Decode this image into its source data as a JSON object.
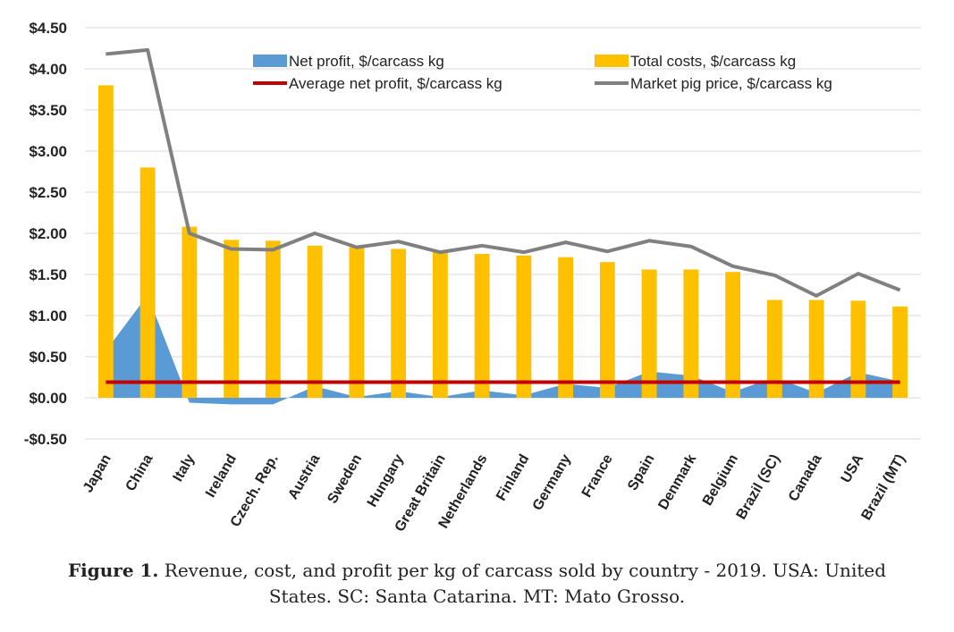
{
  "caption": {
    "label": "Figure 1.",
    "text": "Revenue, cost, and profit per kg of carcass sold by country - 2019. USA: United",
    "text2": "States. SC: Santa Catarina. MT: Mato Grosso."
  },
  "colors": {
    "net_profit": "#5b9bd5",
    "total_costs": "#ffc000",
    "average_net_profit": "#c00000",
    "market_price": "#808080"
  },
  "chart_data": {
    "type": "bar",
    "categories": [
      "Japan",
      "China",
      "Italy",
      "Ireland",
      "Czech. Rep.",
      "Austria",
      "Sweden",
      "Hungary",
      "Great Britain",
      "Netherlands",
      "Finland",
      "Germany",
      "France",
      "Spain",
      "Denmark",
      "Belgium",
      "Brazil (SC)",
      "Canada",
      "USA",
      "Brazil (MT)"
    ],
    "ylim": [
      -0.5,
      4.5
    ],
    "yticks": [
      -0.5,
      0,
      0.5,
      1.0,
      1.5,
      2.0,
      2.5,
      3.0,
      3.5,
      4.0,
      4.5
    ],
    "ytick_labels": [
      "-$0.50",
      "$0.00",
      "$0.50",
      "$1.00",
      "$1.50",
      "$2.00",
      "$2.50",
      "$3.00",
      "$3.50",
      "$4.00",
      "$4.50"
    ],
    "grid": true,
    "legend_position": "top",
    "series": [
      {
        "name": "Net profit, $/carcass kg",
        "kind": "area",
        "values": [
          0.57,
          1.25,
          -0.06,
          -0.08,
          -0.08,
          0.14,
          0.01,
          0.08,
          0.01,
          0.09,
          0.03,
          0.17,
          0.12,
          0.32,
          0.27,
          0.07,
          0.25,
          0.06,
          0.31,
          0.2
        ]
      },
      {
        "name": "Total costs, $/carcass kg",
        "kind": "bar",
        "values": [
          3.8,
          2.8,
          2.08,
          1.92,
          1.91,
          1.85,
          1.83,
          1.81,
          1.79,
          1.75,
          1.73,
          1.71,
          1.65,
          1.56,
          1.56,
          1.53,
          1.19,
          1.19,
          1.18,
          1.11
        ]
      },
      {
        "name": "Average net profit, $/carcass kg",
        "kind": "line",
        "values": [
          0.19,
          0.19,
          0.19,
          0.19,
          0.19,
          0.19,
          0.19,
          0.19,
          0.19,
          0.19,
          0.19,
          0.19,
          0.19,
          0.19,
          0.19,
          0.19,
          0.19,
          0.19,
          0.19,
          0.19
        ]
      },
      {
        "name": "Market pig price, $/carcass kg",
        "kind": "line",
        "values": [
          4.18,
          4.23,
          2.0,
          1.81,
          1.8,
          2.0,
          1.83,
          1.9,
          1.77,
          1.85,
          1.77,
          1.89,
          1.78,
          1.91,
          1.84,
          1.6,
          1.49,
          1.24,
          1.51,
          1.31
        ]
      }
    ]
  }
}
